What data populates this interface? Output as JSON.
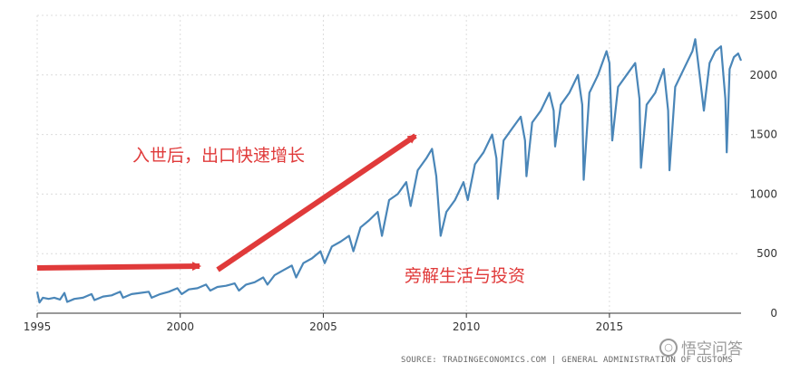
{
  "chart_data": {
    "type": "line",
    "title": "",
    "xlabel": "",
    "ylabel": "",
    "xlim": [
      1995.0,
      2019.6
    ],
    "ylim": [
      0,
      2500
    ],
    "grid": true,
    "y_axis_side": "right",
    "x_ticks": [
      "1995",
      "2000",
      "2005",
      "2010",
      "2015"
    ],
    "y_ticks": [
      "0",
      "500",
      "1000",
      "1500",
      "2000",
      "2500"
    ],
    "series": [
      {
        "color": "#4a86b8",
        "points": [
          [
            1995.0,
            180
          ],
          [
            1995.08,
            90
          ],
          [
            1995.2,
            130
          ],
          [
            1995.4,
            120
          ],
          [
            1995.6,
            130
          ],
          [
            1995.8,
            115
          ],
          [
            1995.95,
            170
          ],
          [
            1996.05,
            95
          ],
          [
            1996.3,
            120
          ],
          [
            1996.6,
            130
          ],
          [
            1996.9,
            160
          ],
          [
            1997.0,
            110
          ],
          [
            1997.3,
            140
          ],
          [
            1997.6,
            150
          ],
          [
            1997.9,
            180
          ],
          [
            1998.0,
            130
          ],
          [
            1998.3,
            160
          ],
          [
            1998.6,
            170
          ],
          [
            1998.9,
            180
          ],
          [
            1999.0,
            130
          ],
          [
            1999.3,
            160
          ],
          [
            1999.6,
            180
          ],
          [
            1999.9,
            210
          ],
          [
            2000.05,
            160
          ],
          [
            2000.3,
            200
          ],
          [
            2000.6,
            210
          ],
          [
            2000.9,
            240
          ],
          [
            2001.05,
            190
          ],
          [
            2001.3,
            220
          ],
          [
            2001.6,
            230
          ],
          [
            2001.9,
            250
          ],
          [
            2002.05,
            190
          ],
          [
            2002.3,
            240
          ],
          [
            2002.6,
            260
          ],
          [
            2002.9,
            300
          ],
          [
            2003.05,
            240
          ],
          [
            2003.3,
            320
          ],
          [
            2003.6,
            360
          ],
          [
            2003.9,
            400
          ],
          [
            2004.05,
            300
          ],
          [
            2004.3,
            420
          ],
          [
            2004.6,
            460
          ],
          [
            2004.9,
            520
          ],
          [
            2005.05,
            420
          ],
          [
            2005.3,
            560
          ],
          [
            2005.6,
            600
          ],
          [
            2005.9,
            650
          ],
          [
            2006.05,
            520
          ],
          [
            2006.3,
            720
          ],
          [
            2006.6,
            780
          ],
          [
            2006.9,
            850
          ],
          [
            2007.05,
            650
          ],
          [
            2007.3,
            950
          ],
          [
            2007.6,
            1000
          ],
          [
            2007.9,
            1100
          ],
          [
            2008.05,
            900
          ],
          [
            2008.3,
            1200
          ],
          [
            2008.6,
            1300
          ],
          [
            2008.8,
            1380
          ],
          [
            2008.95,
            1150
          ],
          [
            2009.1,
            650
          ],
          [
            2009.3,
            850
          ],
          [
            2009.6,
            950
          ],
          [
            2009.9,
            1100
          ],
          [
            2010.05,
            950
          ],
          [
            2010.3,
            1250
          ],
          [
            2010.6,
            1350
          ],
          [
            2010.9,
            1500
          ],
          [
            2011.05,
            1300
          ],
          [
            2011.1,
            960
          ],
          [
            2011.3,
            1450
          ],
          [
            2011.6,
            1550
          ],
          [
            2011.9,
            1650
          ],
          [
            2012.05,
            1450
          ],
          [
            2012.1,
            1150
          ],
          [
            2012.3,
            1600
          ],
          [
            2012.6,
            1700
          ],
          [
            2012.9,
            1850
          ],
          [
            2013.05,
            1700
          ],
          [
            2013.1,
            1400
          ],
          [
            2013.3,
            1750
          ],
          [
            2013.6,
            1850
          ],
          [
            2013.9,
            2000
          ],
          [
            2014.05,
            1750
          ],
          [
            2014.1,
            1120
          ],
          [
            2014.3,
            1850
          ],
          [
            2014.6,
            2000
          ],
          [
            2014.9,
            2200
          ],
          [
            2015.0,
            2100
          ],
          [
            2015.1,
            1450
          ],
          [
            2015.3,
            1900
          ],
          [
            2015.6,
            2000
          ],
          [
            2015.9,
            2100
          ],
          [
            2016.05,
            1800
          ],
          [
            2016.1,
            1220
          ],
          [
            2016.3,
            1750
          ],
          [
            2016.6,
            1850
          ],
          [
            2016.9,
            2050
          ],
          [
            2017.05,
            1700
          ],
          [
            2017.1,
            1200
          ],
          [
            2017.3,
            1900
          ],
          [
            2017.6,
            2050
          ],
          [
            2017.9,
            2200
          ],
          [
            2018.0,
            2300
          ],
          [
            2018.15,
            2000
          ],
          [
            2018.3,
            1700
          ],
          [
            2018.5,
            2100
          ],
          [
            2018.7,
            2200
          ],
          [
            2018.9,
            2240
          ],
          [
            2019.05,
            1800
          ],
          [
            2019.1,
            1350
          ],
          [
            2019.2,
            2050
          ],
          [
            2019.35,
            2150
          ],
          [
            2019.5,
            2180
          ],
          [
            2019.6,
            2120
          ]
        ]
      }
    ],
    "annotations": [
      {
        "text": "入世后，出口快速增长",
        "color": "#e03a3a"
      },
      {
        "text": "旁解生活与投资",
        "color": "#e03a3a"
      }
    ]
  },
  "footer": {
    "source": "SOURCE: TRADINGECONOMICS.COM | GENERAL ADMINISTRATION OF CUSTOMS",
    "watermark": "悟空问答"
  }
}
